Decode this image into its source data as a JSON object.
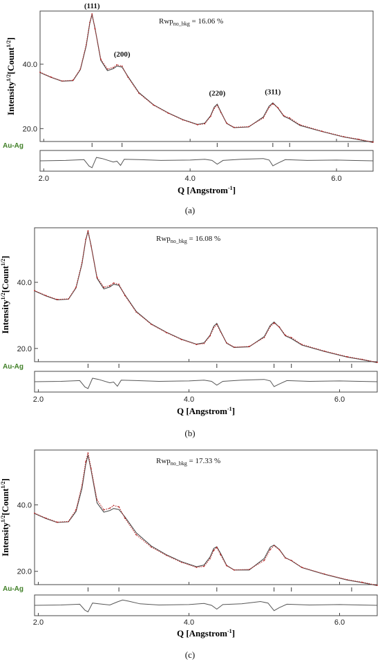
{
  "colors": {
    "observed": "#b22222",
    "calculated": "#4a4a4a",
    "difference": "#555555",
    "phase": "#3f7f26"
  },
  "chart_data": [
    {
      "type": "line",
      "caption": "(a)",
      "rwp_label": "Rwp",
      "rwp_sub": "no_bkg",
      "rwp_value": " = 16.06 %",
      "ylabel_main": "Intensity",
      "ylabel_sup1": "1/2",
      "ylabel_mid": "[Count",
      "ylabel_sup2": "1/2",
      "ylabel_end": "]",
      "xlabel_main": "Q [Angstrom",
      "xlabel_sup": "-1",
      "xlabel_end": "]",
      "phase_label": "Au-Ag",
      "xlim": [
        1.95,
        6.5
      ],
      "ylim": [
        16.0,
        56.5
      ],
      "xticks": [
        "2.0",
        "4.0",
        "6.0"
      ],
      "yticks": [
        "20.0",
        "40.0"
      ],
      "peak_labels": [
        {
          "text": "(111)",
          "q": 2.66
        },
        {
          "text": "(200)",
          "q": 3.07
        },
        {
          "text": "(220)",
          "q": 4.37
        },
        {
          "text": "(311)",
          "q": 5.13
        }
      ],
      "phase_tick_q": [
        2.66,
        3.07,
        4.37,
        5.13,
        5.36,
        6.16
      ],
      "series": [
        {
          "name": "observed",
          "x": [
            1.95,
            2.1,
            2.25,
            2.4,
            2.5,
            2.58,
            2.63,
            2.66,
            2.7,
            2.78,
            2.87,
            2.95,
            3.0,
            3.07,
            3.15,
            3.3,
            3.5,
            3.7,
            3.9,
            4.1,
            4.2,
            4.28,
            4.33,
            4.37,
            4.42,
            4.5,
            4.6,
            4.8,
            5.0,
            5.08,
            5.13,
            5.2,
            5.28,
            5.36,
            5.5,
            5.8,
            6.1,
            6.3,
            6.5
          ],
          "values": [
            37.5,
            36.0,
            34.8,
            35.0,
            38.5,
            46.0,
            53.0,
            55.6,
            51.0,
            41.5,
            38.5,
            39.0,
            39.8,
            39.4,
            36.0,
            31.0,
            27.3,
            24.8,
            22.7,
            21.2,
            21.5,
            23.8,
            26.3,
            27.2,
            25.0,
            21.7,
            20.4,
            20.6,
            23.3,
            26.6,
            27.7,
            26.5,
            24.0,
            23.3,
            21.2,
            19.2,
            17.5,
            16.7,
            15.8
          ]
        },
        {
          "name": "calculated",
          "x": [
            1.95,
            2.1,
            2.25,
            2.4,
            2.5,
            2.58,
            2.63,
            2.66,
            2.7,
            2.78,
            2.87,
            2.95,
            3.0,
            3.07,
            3.15,
            3.3,
            3.5,
            3.7,
            3.9,
            4.1,
            4.2,
            4.28,
            4.33,
            4.37,
            4.42,
            4.5,
            4.6,
            4.8,
            5.0,
            5.08,
            5.13,
            5.2,
            5.28,
            5.36,
            5.5,
            5.8,
            6.1,
            6.3,
            6.5
          ],
          "values": [
            37.4,
            35.9,
            34.7,
            34.9,
            38.3,
            45.6,
            52.8,
            55.4,
            51.2,
            41.2,
            38.0,
            38.6,
            39.4,
            39.1,
            36.2,
            31.2,
            27.4,
            24.9,
            22.8,
            21.3,
            21.7,
            24.0,
            26.7,
            27.6,
            25.2,
            21.6,
            20.3,
            20.5,
            23.6,
            27.0,
            28.0,
            26.4,
            23.8,
            23.0,
            21.0,
            19.1,
            17.4,
            16.6,
            15.7
          ]
        }
      ],
      "difference": {
        "x": [
          1.95,
          2.3,
          2.55,
          2.62,
          2.66,
          2.72,
          2.8,
          2.95,
          3.0,
          3.05,
          3.1,
          3.3,
          3.6,
          4.0,
          4.2,
          4.3,
          4.37,
          4.45,
          4.7,
          5.0,
          5.08,
          5.13,
          5.2,
          5.3,
          5.6,
          6.0,
          6.5
        ],
        "values": [
          0.0,
          0.1,
          0.3,
          -1.4,
          -1.8,
          0.9,
          0.6,
          -0.3,
          -0.1,
          -1.2,
          0.4,
          0.3,
          0.1,
          0.2,
          0.4,
          0.1,
          -0.9,
          0.1,
          0.4,
          0.6,
          0.2,
          -1.3,
          -0.6,
          0.3,
          0.1,
          0.2,
          0.0
        ]
      }
    },
    {
      "type": "line",
      "caption": "(b)",
      "rwp_label": "Rwp",
      "rwp_sub": "no_bkg",
      "rwp_value": " = 16.08 %",
      "ylabel_main": "Intensity",
      "ylabel_sup1": "1/2",
      "ylabel_mid": "[Count",
      "ylabel_sup2": "1/2",
      "ylabel_end": "]",
      "xlabel_main": "Q [Angstrom",
      "xlabel_sup": "-1",
      "xlabel_end": "]",
      "phase_label": "Au-Ag",
      "xlim": [
        1.95,
        6.5
      ],
      "ylim": [
        16.0,
        56.5
      ],
      "xticks": [
        "2.0",
        "4.0",
        "6.0"
      ],
      "yticks": [
        "20.0",
        "40.0"
      ],
      "peak_labels": [],
      "phase_tick_q": [
        2.66,
        3.07,
        4.37,
        5.13,
        5.36,
        6.16
      ],
      "series": [
        {
          "name": "observed",
          "x": [
            1.95,
            2.1,
            2.25,
            2.4,
            2.5,
            2.58,
            2.63,
            2.66,
            2.7,
            2.78,
            2.87,
            2.95,
            3.0,
            3.07,
            3.15,
            3.3,
            3.5,
            3.7,
            3.9,
            4.1,
            4.2,
            4.28,
            4.33,
            4.37,
            4.42,
            4.5,
            4.6,
            4.8,
            5.0,
            5.08,
            5.13,
            5.2,
            5.28,
            5.36,
            5.5,
            5.8,
            6.1,
            6.3,
            6.5
          ],
          "values": [
            37.5,
            36.0,
            34.8,
            35.0,
            38.5,
            46.0,
            53.0,
            55.6,
            51.0,
            41.5,
            38.5,
            39.0,
            39.8,
            39.4,
            36.0,
            31.0,
            27.3,
            24.8,
            22.7,
            21.2,
            21.5,
            23.8,
            26.3,
            27.2,
            25.0,
            21.7,
            20.4,
            20.6,
            23.3,
            26.6,
            27.7,
            26.5,
            24.0,
            23.3,
            21.2,
            19.2,
            17.5,
            16.7,
            15.8
          ]
        },
        {
          "name": "calculated",
          "x": [
            1.95,
            2.1,
            2.25,
            2.4,
            2.5,
            2.58,
            2.63,
            2.66,
            2.7,
            2.78,
            2.87,
            2.95,
            3.0,
            3.07,
            3.15,
            3.3,
            3.5,
            3.7,
            3.9,
            4.1,
            4.2,
            4.28,
            4.33,
            4.37,
            4.42,
            4.5,
            4.6,
            4.8,
            5.0,
            5.08,
            5.13,
            5.2,
            5.28,
            5.36,
            5.5,
            5.8,
            6.1,
            6.3,
            6.5
          ],
          "values": [
            37.4,
            35.9,
            34.7,
            34.9,
            38.3,
            45.6,
            52.8,
            55.4,
            51.2,
            41.2,
            38.0,
            38.6,
            39.4,
            39.1,
            36.2,
            31.2,
            27.4,
            24.9,
            22.8,
            21.3,
            21.7,
            24.0,
            26.7,
            27.6,
            25.2,
            21.6,
            20.3,
            20.5,
            23.6,
            27.0,
            28.0,
            26.4,
            23.8,
            23.0,
            21.0,
            19.1,
            17.4,
            16.6,
            15.7
          ]
        }
      ],
      "difference": {
        "x": [
          1.95,
          2.3,
          2.55,
          2.62,
          2.66,
          2.72,
          2.8,
          2.95,
          3.0,
          3.05,
          3.1,
          3.3,
          3.6,
          4.0,
          4.2,
          4.3,
          4.37,
          4.45,
          4.7,
          5.0,
          5.08,
          5.13,
          5.2,
          5.3,
          5.6,
          6.0,
          6.5
        ],
        "values": [
          0.0,
          0.1,
          0.3,
          -1.4,
          -1.8,
          0.9,
          0.6,
          -0.3,
          -0.1,
          -1.2,
          0.4,
          0.3,
          0.1,
          0.2,
          0.4,
          0.1,
          -0.9,
          0.1,
          0.4,
          0.6,
          0.2,
          -1.3,
          -0.6,
          0.3,
          0.1,
          0.2,
          0.0
        ]
      }
    },
    {
      "type": "line",
      "caption": "(c)",
      "rwp_label": "Rwp",
      "rwp_sub": "no_bkg",
      "rwp_value": " = 17.33 %",
      "ylabel_main": "Intensity",
      "ylabel_sup1": "1/2",
      "ylabel_mid": "[Count",
      "ylabel_sup2": "1/2",
      "ylabel_end": "]",
      "xlabel_main": "Q [Angstrom",
      "xlabel_sup": "-1",
      "xlabel_end": "]",
      "phase_label": "Au-Ag",
      "xlim": [
        1.95,
        6.5
      ],
      "ylim": [
        16.0,
        56.5
      ],
      "xticks": [
        "2.0",
        "4.0",
        "6.0"
      ],
      "yticks": [
        "20.0",
        "40.0"
      ],
      "peak_labels": [],
      "phase_tick_q": [
        2.66,
        3.07,
        4.37,
        5.13,
        5.36,
        6.16
      ],
      "series": [
        {
          "name": "observed",
          "x": [
            1.95,
            2.1,
            2.25,
            2.4,
            2.5,
            2.58,
            2.63,
            2.66,
            2.7,
            2.78,
            2.87,
            2.95,
            3.0,
            3.07,
            3.15,
            3.3,
            3.5,
            3.7,
            3.9,
            4.1,
            4.2,
            4.28,
            4.33,
            4.37,
            4.42,
            4.5,
            4.6,
            4.8,
            5.0,
            5.08,
            5.13,
            5.2,
            5.28,
            5.36,
            5.5,
            5.8,
            6.1,
            6.3,
            6.5
          ],
          "values": [
            37.5,
            36.0,
            34.8,
            35.0,
            38.5,
            46.0,
            53.0,
            55.6,
            51.0,
            41.5,
            38.5,
            39.0,
            39.8,
            39.4,
            36.0,
            31.0,
            27.3,
            24.8,
            22.7,
            21.2,
            21.5,
            23.8,
            26.3,
            27.2,
            25.0,
            21.7,
            20.4,
            20.6,
            23.3,
            26.6,
            27.7,
            26.5,
            24.0,
            23.3,
            21.2,
            19.2,
            17.5,
            16.7,
            15.8
          ]
        },
        {
          "name": "calculated",
          "x": [
            1.95,
            2.1,
            2.25,
            2.4,
            2.5,
            2.58,
            2.63,
            2.66,
            2.7,
            2.78,
            2.87,
            2.95,
            3.0,
            3.07,
            3.15,
            3.3,
            3.5,
            3.7,
            3.9,
            4.1,
            4.2,
            4.28,
            4.33,
            4.37,
            4.42,
            4.5,
            4.6,
            4.8,
            5.0,
            5.08,
            5.13,
            5.2,
            5.28,
            5.36,
            5.5,
            5.8,
            6.1,
            6.3,
            6.5
          ],
          "values": [
            37.4,
            35.9,
            34.7,
            34.9,
            38.0,
            45.0,
            52.2,
            55.0,
            50.5,
            40.6,
            37.8,
            38.3,
            38.9,
            38.6,
            36.4,
            31.6,
            27.6,
            25.0,
            22.9,
            21.4,
            21.9,
            24.3,
            26.9,
            27.4,
            25.4,
            21.8,
            20.4,
            20.4,
            23.9,
            27.3,
            27.9,
            26.6,
            24.1,
            23.2,
            21.1,
            19.1,
            17.4,
            16.6,
            15.7
          ]
        }
      ],
      "difference": {
        "x": [
          1.95,
          2.3,
          2.55,
          2.62,
          2.66,
          2.72,
          2.8,
          2.95,
          3.05,
          3.12,
          3.2,
          3.35,
          3.6,
          4.0,
          4.2,
          4.3,
          4.37,
          4.45,
          4.7,
          4.95,
          5.05,
          5.13,
          5.2,
          5.3,
          5.6,
          6.0,
          6.5
        ],
        "values": [
          0.0,
          0.1,
          0.3,
          -1.3,
          -1.7,
          0.6,
          0.4,
          0.1,
          0.9,
          1.4,
          1.1,
          0.4,
          0.1,
          0.2,
          0.5,
          0.0,
          -1.0,
          0.2,
          0.4,
          1.0,
          0.6,
          -1.4,
          -0.6,
          0.3,
          0.1,
          0.2,
          0.0
        ]
      }
    }
  ]
}
